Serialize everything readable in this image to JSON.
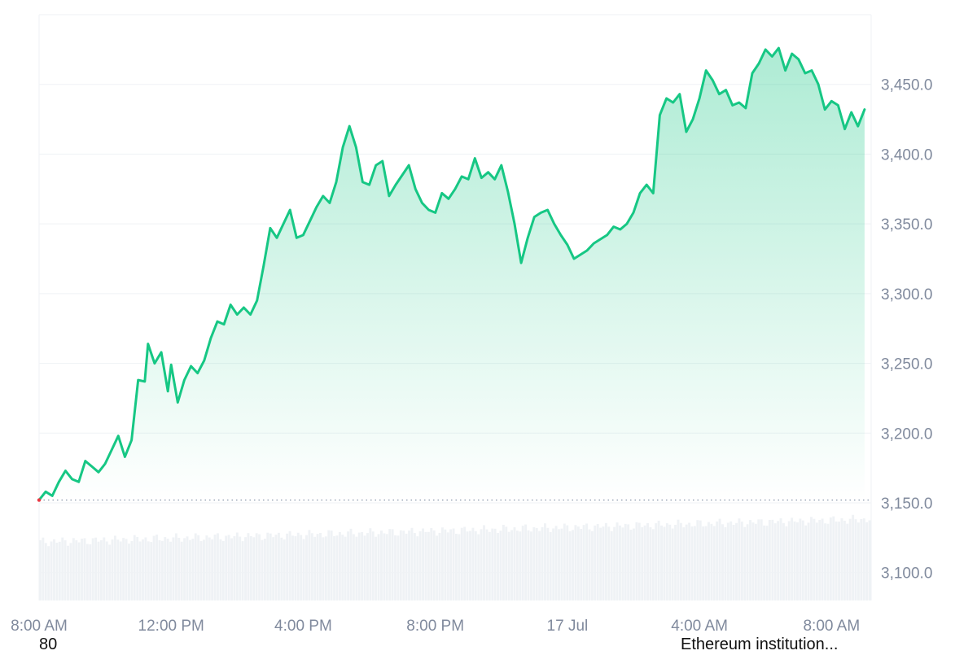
{
  "chart_data": {
    "type": "area",
    "title": "",
    "xlabel": "",
    "ylabel": "",
    "ylim": [
      3080,
      3500
    ],
    "yticks": [
      3100,
      3150,
      3200,
      3250,
      3300,
      3350,
      3400,
      3450
    ],
    "ytick_labels": [
      "3,100.0",
      "3,150.0",
      "3,200.0",
      "3,250.0",
      "3,300.0",
      "3,350.0",
      "3,400.0",
      "3,450.0"
    ],
    "x_range_hours": [
      8,
      33.2
    ],
    "xticks": [
      {
        "label": "8:00 AM",
        "hour": 8
      },
      {
        "label": "12:00 PM",
        "hour": 12
      },
      {
        "label": "4:00 PM",
        "hour": 16
      },
      {
        "label": "8:00 PM",
        "hour": 20
      },
      {
        "label": "17 Jul",
        "hour": 24
      },
      {
        "label": "4:00 AM",
        "hour": 28
      },
      {
        "label": "8:00 AM",
        "hour": 32
      }
    ],
    "baseline": 3152,
    "grid": true,
    "legend": "none",
    "colors": {
      "line": "#16c784",
      "area_top": "#16c784",
      "baseline": "#7f8ea3",
      "grid": "#eff2f5",
      "volume": "#eff2f5",
      "axis_text": "#808a9d",
      "start_marker": "#ea3943"
    },
    "series": [
      {
        "values": [
          [
            8.0,
            3152
          ],
          [
            8.2,
            3158
          ],
          [
            8.4,
            3155
          ],
          [
            8.6,
            3165
          ],
          [
            8.8,
            3173
          ],
          [
            9.0,
            3167
          ],
          [
            9.2,
            3165
          ],
          [
            9.4,
            3180
          ],
          [
            9.6,
            3176
          ],
          [
            9.8,
            3172
          ],
          [
            10.0,
            3178
          ],
          [
            10.2,
            3188
          ],
          [
            10.4,
            3198
          ],
          [
            10.6,
            3183
          ],
          [
            10.8,
            3195
          ],
          [
            11.0,
            3238
          ],
          [
            11.2,
            3237
          ],
          [
            11.3,
            3264
          ],
          [
            11.5,
            3250
          ],
          [
            11.7,
            3258
          ],
          [
            11.9,
            3230
          ],
          [
            12.0,
            3249
          ],
          [
            12.2,
            3222
          ],
          [
            12.4,
            3238
          ],
          [
            12.6,
            3248
          ],
          [
            12.8,
            3243
          ],
          [
            13.0,
            3252
          ],
          [
            13.2,
            3268
          ],
          [
            13.4,
            3280
          ],
          [
            13.6,
            3278
          ],
          [
            13.8,
            3292
          ],
          [
            14.0,
            3285
          ],
          [
            14.2,
            3290
          ],
          [
            14.4,
            3285
          ],
          [
            14.6,
            3295
          ],
          [
            14.8,
            3320
          ],
          [
            15.0,
            3347
          ],
          [
            15.2,
            3340
          ],
          [
            15.4,
            3350
          ],
          [
            15.6,
            3360
          ],
          [
            15.8,
            3340
          ],
          [
            16.0,
            3342
          ],
          [
            16.2,
            3352
          ],
          [
            16.4,
            3362
          ],
          [
            16.6,
            3370
          ],
          [
            16.8,
            3365
          ],
          [
            17.0,
            3380
          ],
          [
            17.2,
            3405
          ],
          [
            17.4,
            3420
          ],
          [
            17.6,
            3405
          ],
          [
            17.8,
            3380
          ],
          [
            18.0,
            3378
          ],
          [
            18.2,
            3392
          ],
          [
            18.4,
            3395
          ],
          [
            18.6,
            3370
          ],
          [
            18.8,
            3378
          ],
          [
            19.0,
            3385
          ],
          [
            19.2,
            3392
          ],
          [
            19.4,
            3375
          ],
          [
            19.6,
            3365
          ],
          [
            19.8,
            3360
          ],
          [
            20.0,
            3358
          ],
          [
            20.2,
            3372
          ],
          [
            20.4,
            3368
          ],
          [
            20.6,
            3375
          ],
          [
            20.8,
            3384
          ],
          [
            21.0,
            3382
          ],
          [
            21.2,
            3397
          ],
          [
            21.4,
            3383
          ],
          [
            21.6,
            3387
          ],
          [
            21.8,
            3382
          ],
          [
            22.0,
            3392
          ],
          [
            22.2,
            3373
          ],
          [
            22.4,
            3350
          ],
          [
            22.6,
            3322
          ],
          [
            22.8,
            3340
          ],
          [
            23.0,
            3355
          ],
          [
            23.2,
            3358
          ],
          [
            23.4,
            3360
          ],
          [
            23.6,
            3350
          ],
          [
            23.8,
            3342
          ],
          [
            24.0,
            3335
          ],
          [
            24.2,
            3325
          ],
          [
            24.4,
            3328
          ],
          [
            24.6,
            3331
          ],
          [
            24.8,
            3336
          ],
          [
            25.0,
            3339
          ],
          [
            25.2,
            3342
          ],
          [
            25.4,
            3348
          ],
          [
            25.6,
            3346
          ],
          [
            25.8,
            3350
          ],
          [
            26.0,
            3358
          ],
          [
            26.2,
            3372
          ],
          [
            26.4,
            3378
          ],
          [
            26.6,
            3372
          ],
          [
            26.8,
            3428
          ],
          [
            27.0,
            3440
          ],
          [
            27.2,
            3437
          ],
          [
            27.4,
            3443
          ],
          [
            27.6,
            3416
          ],
          [
            27.8,
            3425
          ],
          [
            28.0,
            3440
          ],
          [
            28.2,
            3460
          ],
          [
            28.4,
            3453
          ],
          [
            28.6,
            3443
          ],
          [
            28.8,
            3446
          ],
          [
            29.0,
            3435
          ],
          [
            29.2,
            3437
          ],
          [
            29.4,
            3433
          ],
          [
            29.6,
            3458
          ],
          [
            29.8,
            3465
          ],
          [
            30.0,
            3475
          ],
          [
            30.2,
            3470
          ],
          [
            30.4,
            3476
          ],
          [
            30.6,
            3460
          ],
          [
            30.8,
            3472
          ],
          [
            31.0,
            3468
          ],
          [
            31.2,
            3458
          ],
          [
            31.4,
            3460
          ],
          [
            31.6,
            3450
          ],
          [
            31.8,
            3432
          ],
          [
            32.0,
            3438
          ],
          [
            32.2,
            3435
          ],
          [
            32.4,
            3418
          ],
          [
            32.6,
            3430
          ],
          [
            32.8,
            3420
          ],
          [
            33.0,
            3432
          ]
        ]
      }
    ]
  },
  "footer": {
    "left": "80",
    "right": "Ethereum institution..."
  }
}
